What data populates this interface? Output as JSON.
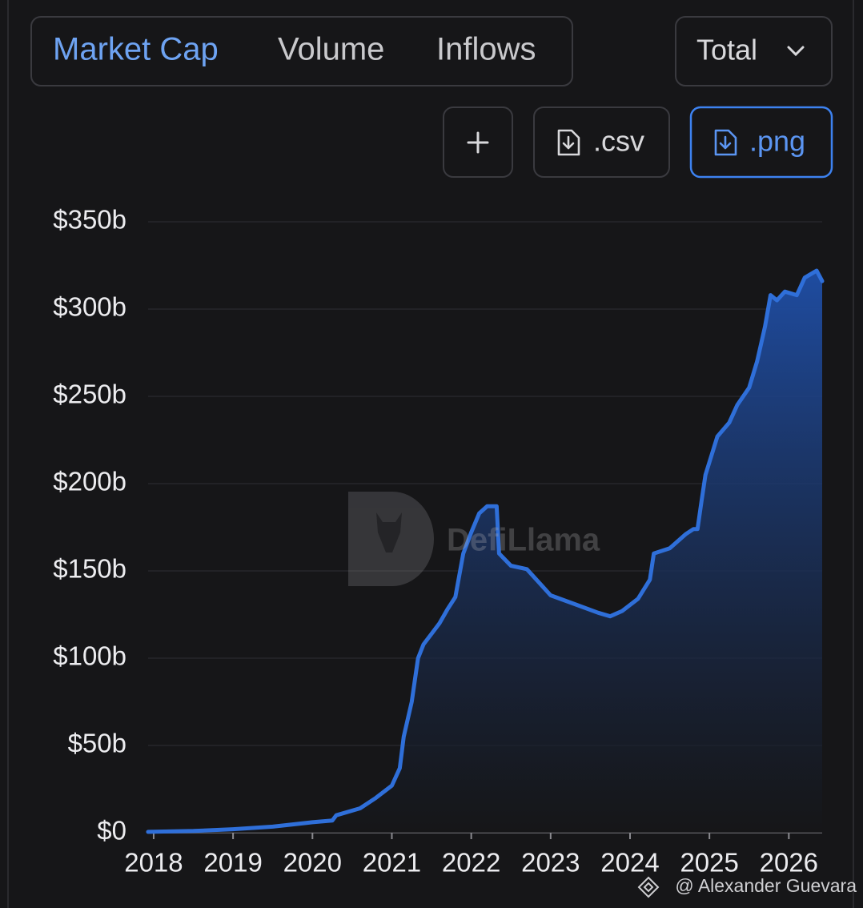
{
  "tabs": [
    "Market Cap",
    "Volume",
    "Inflows"
  ],
  "dropdown": "Total",
  "buttons": [
    ".csv",
    ".png"
  ],
  "watermark": "DefiLlama",
  "credit": "@ Alexander Guevara",
  "chart_data": {
    "type": "area",
    "color": "#2f6fd9",
    "grid": true,
    "x": [
      2017.93,
      2018.5,
      2019.0,
      2019.5,
      2020.0,
      2020.25,
      2020.3,
      2020.6,
      2020.8,
      2021.0,
      2021.1,
      2021.15,
      2021.25,
      2021.33,
      2021.4,
      2021.5,
      2021.6,
      2021.7,
      2021.8,
      2021.9,
      2022.0,
      2022.1,
      2022.2,
      2022.32,
      2022.35,
      2022.5,
      2022.7,
      2022.9,
      2023.0,
      2023.3,
      2023.6,
      2023.75,
      2023.9,
      2024.1,
      2024.25,
      2024.3,
      2024.5,
      2024.7,
      2024.8,
      2024.85,
      2024.9,
      2024.95,
      2025.1,
      2025.25,
      2025.35,
      2025.5,
      2025.6,
      2025.7,
      2025.77,
      2025.85,
      2025.95,
      2026.1,
      2026.2,
      2026.35,
      2026.42
    ],
    "values": [
      0.5,
      1,
      2,
      3.5,
      6,
      7,
      10,
      14,
      20,
      27,
      37,
      55,
      75,
      100,
      108,
      114,
      120,
      128,
      135,
      160,
      172,
      183,
      187,
      187,
      160,
      153,
      151,
      141,
      136,
      131,
      126,
      124,
      127,
      134,
      145,
      160,
      163,
      171,
      174,
      174,
      190,
      205,
      227,
      235,
      245,
      255,
      270,
      290,
      308,
      305,
      310,
      308,
      318,
      322,
      316
    ],
    "xlim": [
      2017.93,
      2026.42
    ],
    "xticks": [
      2018,
      2019,
      2020,
      2021,
      2022,
      2023,
      2024,
      2025,
      2026
    ],
    "ylim": [
      0,
      350
    ],
    "yticks": [
      {
        "value": 0,
        "label": "$0"
      },
      {
        "value": 50,
        "label": "$50b"
      },
      {
        "value": 100,
        "label": "$100b"
      },
      {
        "value": 150,
        "label": "$150b"
      },
      {
        "value": 200,
        "label": "$200b"
      },
      {
        "value": 250,
        "label": "$250b"
      },
      {
        "value": 300,
        "label": "$300b"
      },
      {
        "value": 350,
        "label": "$350b"
      }
    ]
  }
}
